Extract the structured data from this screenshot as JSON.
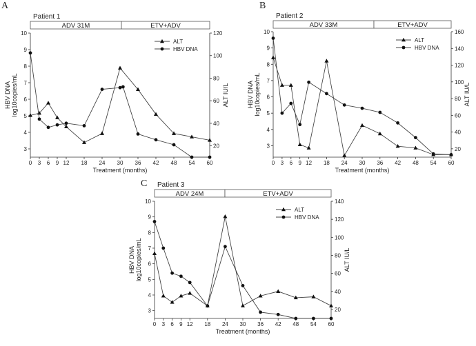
{
  "chart_data": [
    {
      "panel": "A",
      "type": "line",
      "title": "Patient 1",
      "treatment_bar": [
        "ADV 31M",
        "ETV+ADV"
      ],
      "xlabel": "Treatment (months)",
      "ylabel_left": [
        "HBV DNA",
        "log10copies/mL"
      ],
      "ylabel_right": "ALT IU/L",
      "x_ticks": [
        0,
        3,
        6,
        9,
        12,
        18,
        24,
        30,
        36,
        42,
        48,
        54,
        60
      ],
      "ylim_left": [
        2.5,
        10
      ],
      "ylim_right": [
        10,
        120
      ],
      "yticks_left": [
        3,
        4,
        5,
        6,
        7,
        8,
        9,
        10
      ],
      "yticks_right": [
        20,
        40,
        60,
        80,
        100,
        120
      ],
      "legend": [
        "ALT",
        "HBV DNA"
      ],
      "series": [
        {
          "name": "ALT",
          "axis": "right",
          "marker": "triangle",
          "x": [
            0,
            3,
            6,
            9,
            12,
            18,
            24,
            30,
            36,
            42,
            48,
            54,
            60
          ],
          "y": [
            47,
            49,
            58,
            45,
            37,
            23,
            31,
            89,
            70,
            48,
            31,
            28,
            25
          ]
        },
        {
          "name": "HBV DNA",
          "axis": "left",
          "marker": "circle",
          "x": [
            0,
            3,
            6,
            9,
            12,
            18,
            24,
            30,
            31,
            36,
            42,
            48,
            54,
            60
          ],
          "y": [
            8.8,
            4.8,
            4.3,
            4.45,
            4.55,
            4.4,
            6.6,
            6.7,
            6.75,
            3.9,
            3.55,
            3.25,
            2.5,
            2.5
          ]
        }
      ]
    },
    {
      "panel": "B",
      "type": "line",
      "title": "Patient 2",
      "treatment_bar": [
        "ADV 33M",
        "ETV+ADV"
      ],
      "xlabel": "Treatment (months)",
      "ylabel_left": [
        "HBV DNA",
        "log10copies/mL"
      ],
      "ylabel_right": "ALT IU/L",
      "x_ticks": [
        0,
        3,
        6,
        9,
        12,
        18,
        24,
        30,
        36,
        42,
        48,
        54,
        60
      ],
      "ylim_left": [
        2.3,
        10
      ],
      "ylim_right": [
        10,
        160
      ],
      "yticks_left": [
        3,
        4,
        5,
        6,
        7,
        8,
        9,
        10
      ],
      "yticks_right": [
        20,
        40,
        60,
        80,
        100,
        120,
        140,
        160
      ],
      "legend": [
        "ALT",
        "HBV DNA"
      ],
      "series": [
        {
          "name": "ALT",
          "axis": "right",
          "marker": "triangle",
          "x": [
            0,
            3,
            6,
            9,
            12,
            18,
            24,
            30,
            36,
            42,
            48,
            54,
            60
          ],
          "y": [
            129,
            96,
            96,
            25,
            21,
            125,
            12,
            48,
            38,
            23,
            21,
            13,
            13
          ]
        },
        {
          "name": "HBV DNA",
          "axis": "left",
          "marker": "circle",
          "x": [
            0,
            3,
            6,
            9,
            12,
            18,
            24,
            30,
            36,
            42,
            48,
            54,
            60
          ],
          "y": [
            9.6,
            5.0,
            5.6,
            4.3,
            6.9,
            6.2,
            5.5,
            5.3,
            5.05,
            4.4,
            3.5,
            2.5,
            2.45
          ]
        }
      ]
    },
    {
      "panel": "C",
      "type": "line",
      "title": "Patient 3",
      "treatment_bar": [
        "ADV 24M",
        "ETV+ADV"
      ],
      "xlabel": "Treatment (months)",
      "ylabel_left": [
        "HBV DNA",
        "log10copies/mL"
      ],
      "ylabel_right": "ALT IU/L",
      "x_ticks": [
        0,
        3,
        6,
        9,
        12,
        18,
        24,
        30,
        36,
        42,
        48,
        54,
        60
      ],
      "ylim_left": [
        2.5,
        10
      ],
      "ylim_right": [
        10,
        140
      ],
      "yticks_left": [
        3,
        4,
        5,
        6,
        7,
        8,
        9,
        10
      ],
      "yticks_right": [
        20,
        40,
        60,
        80,
        100,
        120,
        140
      ],
      "legend": [
        "ALT",
        "HBV DNA"
      ],
      "series": [
        {
          "name": "ALT",
          "axis": "right",
          "marker": "triangle",
          "x": [
            0,
            3,
            6,
            9,
            12,
            18,
            24,
            30,
            36,
            42,
            48,
            54,
            60
          ],
          "y": [
            82,
            35,
            28,
            35,
            38,
            24,
            123,
            24,
            35,
            40,
            33,
            34,
            24
          ]
        },
        {
          "name": "HBV DNA",
          "axis": "left",
          "marker": "circle",
          "x": [
            0,
            3,
            6,
            9,
            12,
            18,
            24,
            30,
            36,
            42,
            48,
            54,
            60
          ],
          "y": [
            8.7,
            7.0,
            5.4,
            5.2,
            4.8,
            3.3,
            7.1,
            4.6,
            2.9,
            2.75,
            2.5,
            2.5,
            2.5
          ]
        }
      ]
    }
  ]
}
